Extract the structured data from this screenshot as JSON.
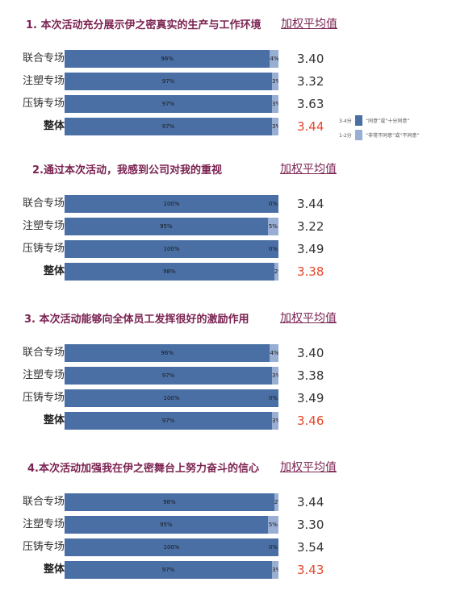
{
  "legend": {
    "items": [
      {
        "key": "3-4分",
        "text": "“同意”或“十分同意”",
        "color": "#4a6fa5"
      },
      {
        "key": "1-2分",
        "text": "“非常不同意”或“不同意”",
        "color": "#98aed2"
      }
    ]
  },
  "chart_data": [
    {
      "type": "bar",
      "title": "1. 本次活动充分展示伊之密真实的生产与工作环境",
      "score_header": "加权平均值",
      "categories": [
        "联合专场",
        "注塑专场",
        "压铸专场",
        "整体"
      ],
      "series": [
        {
          "name": "3-4分 “同意”或“十分同意”",
          "values": [
            96,
            97,
            97,
            97
          ],
          "labels": [
            "96%",
            "97%",
            "97%",
            "97%"
          ]
        },
        {
          "name": "1-2分 “非常不同意”或“不同意”",
          "values": [
            4,
            3,
            3,
            3
          ],
          "labels": [
            "4%",
            "3%",
            "3%",
            "3%"
          ]
        }
      ],
      "weighted_avg": [
        "3.40",
        "3.32",
        "3.63",
        "3.44"
      ],
      "ylim": [
        0,
        100
      ]
    },
    {
      "type": "bar",
      "title": "2.通过本次活动，我感到公司对我的重视",
      "score_header": "加权平均值",
      "categories": [
        "联合专场",
        "注塑专场",
        "压铸专场",
        "整体"
      ],
      "series": [
        {
          "name": "3-4分 “同意”或“十分同意”",
          "values": [
            100,
            95,
            100,
            98
          ],
          "labels": [
            "100%",
            "95%",
            "100%",
            "98%"
          ]
        },
        {
          "name": "1-2分 “非常不同意”或“不同意”",
          "values": [
            0,
            5,
            0,
            2
          ],
          "labels": [
            "0%",
            "5%",
            "0%",
            "2%"
          ]
        }
      ],
      "weighted_avg": [
        "3.44",
        "3.22",
        "3.49",
        "3.38"
      ],
      "ylim": [
        0,
        100
      ]
    },
    {
      "type": "bar",
      "title": "3. 本次活动能够向全体员工发挥很好的激励作用",
      "score_header": "加权平均值",
      "categories": [
        "联合专场",
        "注塑专场",
        "压铸专场",
        "整体"
      ],
      "series": [
        {
          "name": "3-4分 “同意”或“十分同意”",
          "values": [
            96,
            97,
            100,
            97
          ],
          "labels": [
            "96%",
            "97%",
            "100%",
            "97%"
          ]
        },
        {
          "name": "1-2分 “非常不同意”或“不同意”",
          "values": [
            4,
            3,
            0,
            3
          ],
          "labels": [
            "4%",
            "3%",
            "0%",
            "3%"
          ]
        }
      ],
      "weighted_avg": [
        "3.40",
        "3.38",
        "3.49",
        "3.46"
      ],
      "ylim": [
        0,
        100
      ]
    },
    {
      "type": "bar",
      "title": "4.本次活动加强我在伊之密舞台上努力奋斗的信心",
      "score_header": "加权平均值",
      "categories": [
        "联合专场",
        "注塑专场",
        "压铸专场",
        "整体"
      ],
      "series": [
        {
          "name": "3-4分 “同意”或“十分同意”",
          "values": [
            98,
            95,
            100,
            97
          ],
          "labels": [
            "98%",
            "95%",
            "100%",
            "97%"
          ]
        },
        {
          "name": "1-2分 “非常不同意”或“不同意”",
          "values": [
            2,
            5,
            0,
            3
          ],
          "labels": [
            "2%",
            "5%",
            "0%",
            "3%"
          ]
        }
      ],
      "weighted_avg": [
        "3.44",
        "3.30",
        "3.54",
        "3.43"
      ],
      "ylim": [
        0,
        100
      ]
    }
  ]
}
